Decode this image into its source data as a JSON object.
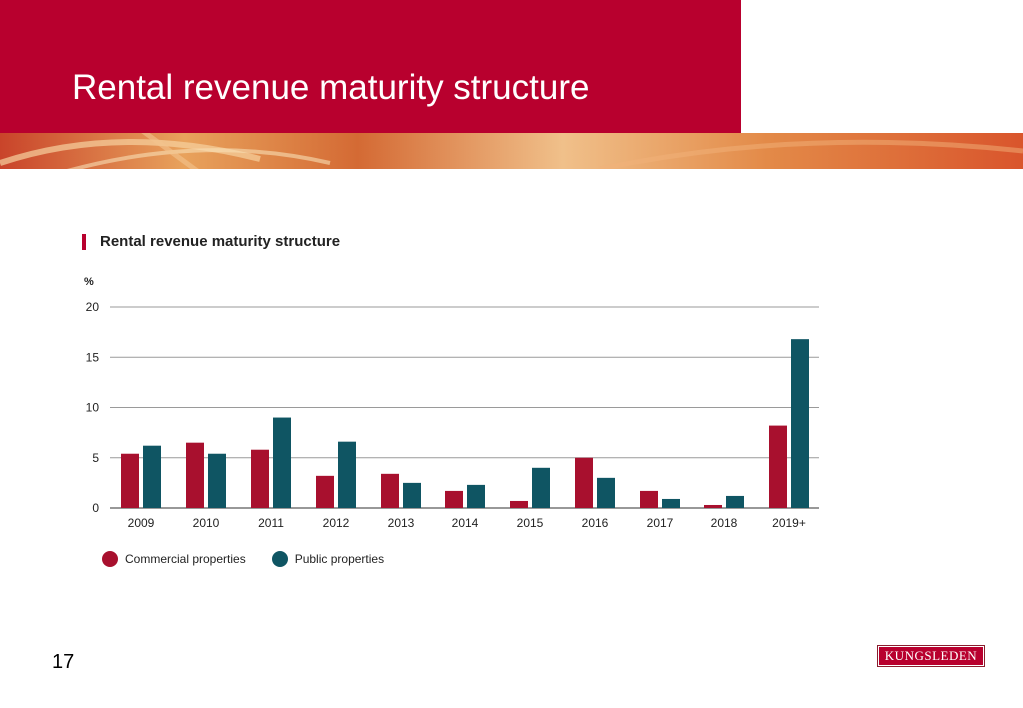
{
  "slide": {
    "title": "Rental revenue maturity structure",
    "page_number": "17",
    "logo_text": "KUNGSLEDEN"
  },
  "colors": {
    "title_background": "#b8002e",
    "commercial": "#a8102e",
    "public": "#0f5563",
    "gridline": "#9a9a9a"
  },
  "chart_data": {
    "type": "bar",
    "title": "Rental revenue maturity structure",
    "ylabel": "%",
    "xlabel": "",
    "ylim": [
      0,
      20
    ],
    "yticks": [
      0,
      5,
      10,
      15,
      20
    ],
    "grid": true,
    "legend_position": "bottom-left",
    "categories": [
      "2009",
      "2010",
      "2011",
      "2012",
      "2013",
      "2014",
      "2015",
      "2016",
      "2017",
      "2018",
      "2019+"
    ],
    "series": [
      {
        "name": "Commercial properties",
        "values": [
          5.4,
          6.5,
          5.8,
          3.2,
          3.4,
          1.7,
          0.7,
          5.0,
          1.7,
          0.3,
          8.2
        ]
      },
      {
        "name": "Public properties",
        "values": [
          6.2,
          5.4,
          9.0,
          6.6,
          2.5,
          2.3,
          4.0,
          3.0,
          0.9,
          1.2,
          16.8
        ]
      }
    ]
  }
}
